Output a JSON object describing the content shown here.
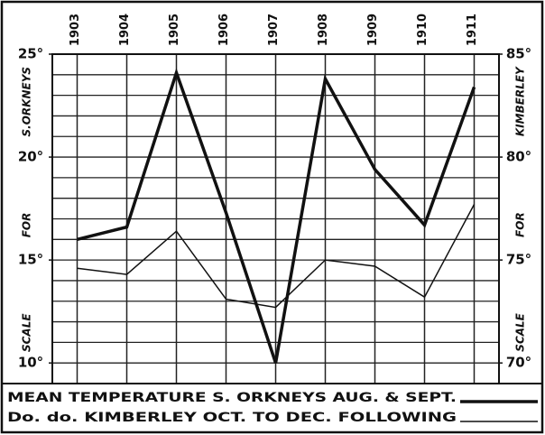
{
  "chart_data": {
    "type": "line",
    "categories": [
      "1903",
      "1904",
      "1905",
      "1906",
      "1907",
      "1908",
      "1909",
      "1910",
      "1911"
    ],
    "ylabel": "SCALE FOR S.ORKNEYS",
    "y2label": "SCALE FOR KIMBERLEY",
    "series": [
      {
        "name": "MEAN TEMPERATURE S. ORKNEYS AUG. & SEPT.",
        "color": "#111111",
        "width": 3.5,
        "values": [
          16.0,
          16.6,
          24.1,
          17.3,
          10.0,
          23.8,
          19.4,
          16.7,
          23.4
        ]
      },
      {
        "name": "Do. do. KIMBERLEY OCT. TO DEC. FOLLOWING",
        "color": "#111111",
        "width": 1.5,
        "axis": "y2",
        "values": [
          74.6,
          74.3,
          76.4,
          73.1,
          72.7,
          75.0,
          74.7,
          73.2,
          77.7
        ]
      }
    ],
    "ylim": [
      9,
      25
    ],
    "yticks": [
      {
        "value": 10,
        "label": "10°"
      },
      {
        "value": 15,
        "label": "15°"
      },
      {
        "value": 20,
        "label": "20°"
      },
      {
        "value": 25,
        "label": "25°"
      }
    ],
    "y_minor_ticks": [
      10,
      11,
      12,
      13,
      14,
      15,
      16,
      17,
      18,
      19,
      20,
      21,
      22,
      23,
      24
    ],
    "y2lim": [
      69,
      85
    ],
    "y2ticks": [
      {
        "value": 70,
        "label": "70°"
      },
      {
        "value": 75,
        "label": "75°"
      },
      {
        "value": 80,
        "label": "80°"
      },
      {
        "value": 85,
        "label": "85°"
      }
    ],
    "grid": true
  }
}
